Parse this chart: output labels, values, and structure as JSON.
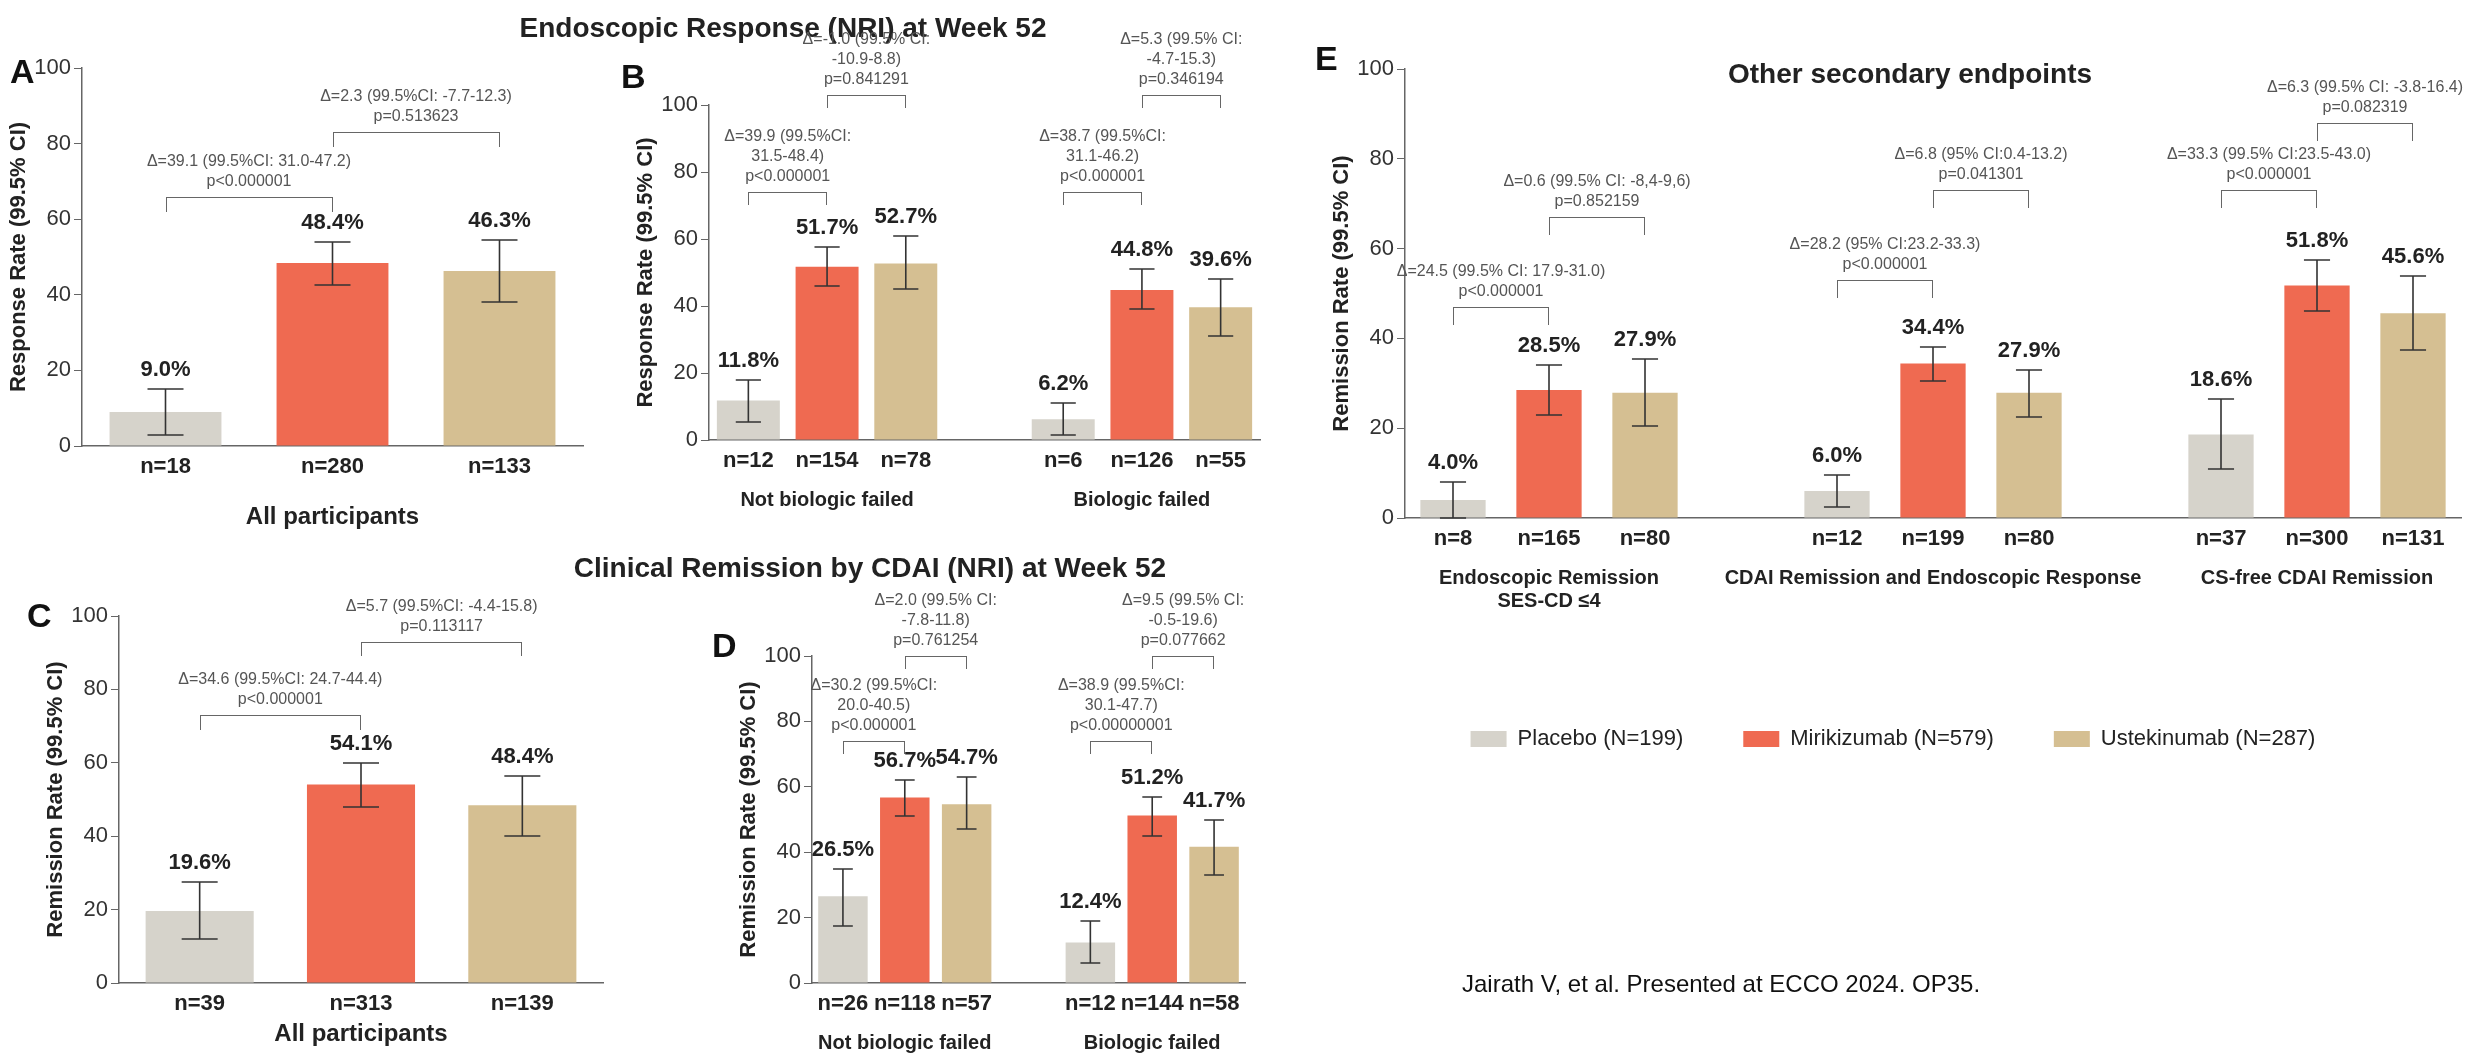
{
  "chart_data": [
    {
      "type": "bar",
      "title": "Endoscopic Response (NRI) at Week 52",
      "xlabel": "All participants",
      "ylabel": "Response Rate (99.5% CI)",
      "categories": [
        "n=18",
        "n=280",
        "n=133"
      ],
      "series": [
        {
          "color": "#d6d3cb",
          "values": [
            9.0,
            null,
            null
          ],
          "errors": [
            [
              3,
              15
            ],
            null,
            null
          ],
          "value_labels": [
            "9.0%",
            null,
            null
          ]
        },
        {
          "color": "#ef6a51",
          "values": [
            null,
            48.4,
            null
          ],
          "errors": [
            null,
            [
              42.5,
              54
            ],
            null
          ],
          "value_labels": [
            null,
            "48.4%",
            null
          ]
        },
        {
          "color": "#d5bf92",
          "values": [
            null,
            null,
            46.3
          ],
          "errors": [
            null,
            null,
            [
              38,
              54.5
            ]
          ],
          "value_labels": [
            null,
            null,
            "46.3%"
          ]
        }
      ],
      "ylim": [
        0,
        100
      ],
      "yticks": [
        0,
        20,
        40,
        60,
        80,
        100
      ],
      "grid": false,
      "legend": false,
      "annotations": [
        "A",
        "Δ=39.1 (99.5%CI: 31.0-47.2)\np<0.000001",
        "Δ=2.3 (99.5%CI: -7.7-12.3)\np=0.513623"
      ]
    },
    {
      "type": "bar",
      "ylabel": "Response Rate (99.5% CI)",
      "categories": [
        "n=12",
        "n=154",
        "n=78",
        null,
        "n=6",
        "n=126",
        "n=55"
      ],
      "series": [
        {
          "color": "#d6d3cb",
          "values": [
            11.8,
            null,
            null,
            null,
            6.2,
            null,
            null
          ],
          "errors": [
            [
              5.5,
              18
            ],
            null,
            null,
            null,
            [
              1.5,
              11
            ],
            null,
            null
          ],
          "value_labels": [
            "11.8%",
            null,
            null,
            null,
            "6.2%",
            null,
            null
          ]
        },
        {
          "color": "#ef6a51",
          "values": [
            null,
            51.7,
            null,
            null,
            null,
            44.8,
            null
          ],
          "errors": [
            null,
            [
              46,
              57.5
            ],
            null,
            null,
            null,
            [
              39,
              51
            ],
            null
          ],
          "value_labels": [
            null,
            "51.7%",
            null,
            null,
            null,
            "44.8%",
            null
          ]
        },
        {
          "color": "#d5bf92",
          "values": [
            null,
            null,
            52.7,
            null,
            null,
            null,
            39.6
          ],
          "errors": [
            null,
            null,
            [
              45,
              61
            ],
            null,
            null,
            null,
            [
              31,
              48
            ]
          ],
          "value_labels": [
            null,
            null,
            "52.7%",
            null,
            null,
            null,
            "39.6%"
          ]
        }
      ],
      "ylim": [
        0,
        100
      ],
      "yticks": [
        0,
        20,
        40,
        60,
        80,
        100
      ],
      "grid": false,
      "legend": false,
      "annotations": [
        "B",
        "Not biologic failed",
        "Biologic failed",
        "Δ=39.9 (99.5%CI:\n31.5-48.4)\np<0.000001",
        "Δ=-1.0 (99.5% CI:\n-10.9-8.8)\np=0.841291",
        "Δ=38.7 (99.5%CI:\n31.1-46.2)\np<0.000001",
        "Δ=5.3 (99.5% CI:\n-4.7-15.3)\np=0.346194"
      ]
    },
    {
      "type": "bar",
      "title": "Clinical Remission by CDAI (NRI) at Week 52",
      "xlabel": "All participants",
      "ylabel": "Remission Rate (99.5% CI)",
      "categories": [
        "n=39",
        "n=313",
        "n=139"
      ],
      "series": [
        {
          "color": "#d6d3cb",
          "values": [
            19.6,
            null,
            null
          ],
          "errors": [
            [
              12,
              27.5
            ],
            null,
            null
          ],
          "value_labels": [
            "19.6%",
            null,
            null
          ]
        },
        {
          "color": "#ef6a51",
          "values": [
            null,
            54.1,
            null
          ],
          "errors": [
            null,
            [
              48,
              60
            ],
            null
          ],
          "value_labels": [
            null,
            "54.1%",
            null
          ]
        },
        {
          "color": "#d5bf92",
          "values": [
            null,
            null,
            48.4
          ],
          "errors": [
            null,
            null,
            [
              40,
              56.5
            ]
          ],
          "value_labels": [
            null,
            null,
            "48.4%"
          ]
        }
      ],
      "ylim": [
        0,
        100
      ],
      "yticks": [
        0,
        20,
        40,
        60,
        80,
        100
      ],
      "grid": false,
      "legend": false,
      "annotations": [
        "C",
        "Δ=34.6 (99.5%CI: 24.7-44.4)\np<0.000001",
        "Δ=5.7 (99.5%CI: -4.4-15.8)\np=0.113117"
      ]
    },
    {
      "type": "bar",
      "ylabel": "Remission Rate (99.5% CI)",
      "categories": [
        "n=26",
        "n=118",
        "n=57",
        null,
        "n=12",
        "n=144",
        "n=58"
      ],
      "series": [
        {
          "color": "#d6d3cb",
          "values": [
            26.5,
            null,
            null,
            null,
            12.4,
            null,
            null
          ],
          "errors": [
            [
              17.5,
              35
            ],
            null,
            null,
            null,
            [
              6,
              19
            ],
            null,
            null
          ],
          "value_labels": [
            "26.5%",
            null,
            null,
            null,
            "12.4%",
            null,
            null
          ]
        },
        {
          "color": "#ef6a51",
          "values": [
            null,
            56.7,
            null,
            null,
            null,
            51.2,
            null
          ],
          "errors": [
            null,
            [
              51,
              62
            ],
            null,
            null,
            null,
            [
              45,
              57
            ],
            null
          ],
          "value_labels": [
            null,
            "56.7%",
            null,
            null,
            null,
            "51.2%",
            null
          ]
        },
        {
          "color": "#d5bf92",
          "values": [
            null,
            null,
            54.7,
            null,
            null,
            null,
            41.7
          ],
          "errors": [
            null,
            null,
            [
              47,
              63
            ],
            null,
            null,
            null,
            [
              33,
              50
            ]
          ],
          "value_labels": [
            null,
            null,
            "54.7%",
            null,
            null,
            null,
            "41.7%"
          ]
        }
      ],
      "ylim": [
        0,
        100
      ],
      "yticks": [
        0,
        20,
        40,
        60,
        80,
        100
      ],
      "grid": false,
      "legend": false,
      "annotations": [
        "D",
        "Not biologic failed",
        "Biologic failed",
        "Δ=30.2 (99.5%CI:\n20.0-40.5)\np<0.000001",
        "Δ=2.0 (99.5% CI:\n-7.8-11.8)\np=0.761254",
        "Δ=38.9 (99.5%CI:\n30.1-47.7)\np<0.00000001",
        "Δ=9.5 (99.5% CI:\n-0.5-19.6)\np=0.077662"
      ]
    },
    {
      "type": "bar",
      "title": "Other secondary endpoints",
      "ylabel": "Remission Rate (99.5% CI)",
      "categories": [
        "n=8",
        "n=165",
        "n=80",
        null,
        "n=12",
        "n=199",
        "n=80",
        null,
        "n=37",
        "n=300",
        "n=131"
      ],
      "series": [
        {
          "name": "Placebo (N=199)",
          "color": "#d6d3cb",
          "values": [
            4.0,
            null,
            null,
            null,
            6.0,
            null,
            null,
            null,
            18.6,
            null,
            null
          ],
          "errors": [
            [
              0,
              8
            ],
            null,
            null,
            null,
            [
              2.5,
              9.5
            ],
            null,
            null,
            null,
            [
              11,
              26.5
            ],
            null,
            null
          ],
          "value_labels": [
            "4.0%",
            null,
            null,
            null,
            "6.0%",
            null,
            null,
            null,
            "18.6%",
            null,
            null
          ]
        },
        {
          "name": "Mirikizumab (N=579)",
          "color": "#ef6a51",
          "values": [
            null,
            28.5,
            null,
            null,
            null,
            34.4,
            null,
            null,
            null,
            51.8,
            null
          ],
          "errors": [
            null,
            [
              23,
              34
            ],
            null,
            null,
            null,
            [
              30.5,
              38
            ],
            null,
            null,
            null,
            [
              46,
              57.5
            ],
            null
          ],
          "value_labels": [
            null,
            "28.5%",
            null,
            null,
            null,
            "34.4%",
            null,
            null,
            null,
            "51.8%",
            null
          ]
        },
        {
          "name": "Ustekinumab (N=287)",
          "color": "#d5bf92",
          "values": [
            null,
            null,
            27.9,
            null,
            null,
            null,
            27.9,
            null,
            null,
            null,
            45.6
          ],
          "errors": [
            null,
            null,
            [
              20.5,
              35.5
            ],
            null,
            null,
            null,
            [
              22.5,
              33
            ],
            null,
            null,
            null,
            [
              37.5,
              54
            ]
          ],
          "value_labels": [
            null,
            null,
            "27.9%",
            null,
            null,
            null,
            "27.9%",
            null,
            null,
            null,
            "45.6%"
          ]
        }
      ],
      "ylim": [
        0,
        100
      ],
      "yticks": [
        0,
        20,
        40,
        60,
        80,
        100
      ],
      "grid": false,
      "legend": "bottom",
      "annotations": [
        "E",
        "Endoscopic Remission\nSES-CD ≤4",
        "CDAI Remission and Endoscopic Response",
        "CS-free CDAI Remission",
        "Δ=24.5 (99.5% CI: 17.9-31.0)\np<0.000001",
        "Δ=0.6 (99.5% CI: -8,4-9,6)\np=0.852159",
        "Δ=28.2 (95% CI:23.2-33.3)\np<0.000001",
        "Δ=6.8 (95% CI:0.4-13.2)\np=0.041301",
        "Δ=33.3 (99.5% CI:23.5-43.0)\np<0.000001",
        "Δ=6.3 (99.5% CI: -3.8-16.4)\np=0.082319",
        "Jairath V, et al. Presented at ECCO 2024. OP35."
      ]
    }
  ]
}
